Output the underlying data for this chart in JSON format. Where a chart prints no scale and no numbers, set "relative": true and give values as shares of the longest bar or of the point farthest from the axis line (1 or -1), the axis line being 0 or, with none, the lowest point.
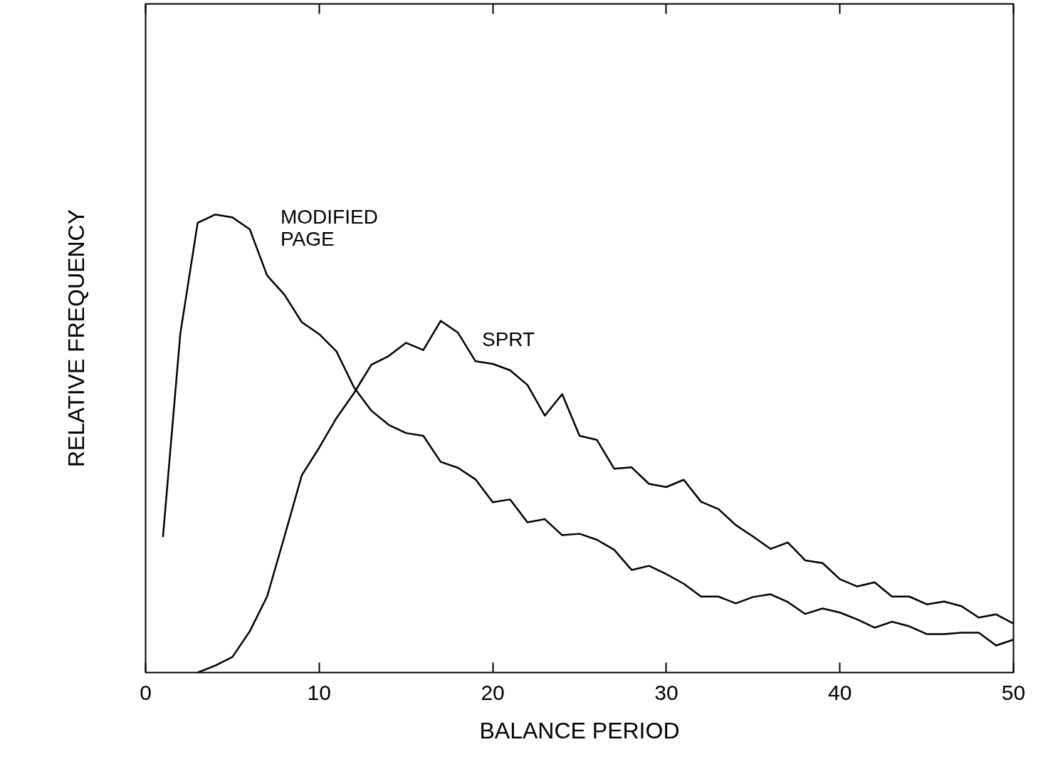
{
  "chart_data": {
    "type": "line",
    "xlabel": "BALANCE PERIOD",
    "ylabel": "RELATIVE FREQUENCY",
    "relative": true,
    "xlim": [
      0,
      50
    ],
    "xticks": [
      0,
      10,
      20,
      30,
      40,
      50
    ],
    "grid": false,
    "legend": false,
    "marker": "none",
    "line_style": "solid",
    "series": [
      {
        "name": "MODIFIED\nPAGE",
        "color": "#000000",
        "x": [
          1,
          2,
          3,
          4,
          5,
          6,
          7,
          8,
          9,
          10,
          11,
          12,
          13,
          14,
          15,
          16,
          17,
          18,
          19,
          20,
          21,
          22,
          23,
          24,
          25,
          26,
          27,
          28,
          29,
          30,
          31,
          32,
          33,
          34,
          35,
          36,
          37,
          38,
          39,
          40,
          41,
          42,
          43,
          44,
          45,
          46,
          47,
          48,
          49,
          50
        ],
        "values": [
          0.296,
          0.74,
          0.982,
          1.0,
          0.994,
          0.968,
          0.867,
          0.825,
          0.765,
          0.739,
          0.701,
          0.623,
          0.572,
          0.541,
          0.523,
          0.517,
          0.46,
          0.447,
          0.422,
          0.372,
          0.378,
          0.328,
          0.335,
          0.3,
          0.303,
          0.29,
          0.268,
          0.224,
          0.233,
          0.215,
          0.194,
          0.166,
          0.166,
          0.151,
          0.165,
          0.171,
          0.154,
          0.128,
          0.14,
          0.131,
          0.116,
          0.098,
          0.111,
          0.101,
          0.084,
          0.084,
          0.087,
          0.087,
          0.059,
          0.072
        ]
      },
      {
        "name": "SPRT",
        "color": "#000000",
        "x": [
          3,
          4,
          5,
          6,
          7,
          8,
          9,
          10,
          11,
          12,
          13,
          14,
          15,
          16,
          17,
          18,
          19,
          20,
          21,
          22,
          23,
          24,
          25,
          26,
          27,
          28,
          29,
          30,
          31,
          32,
          33,
          34,
          35,
          36,
          37,
          38,
          39,
          40,
          41,
          42,
          43,
          44,
          45,
          46,
          47,
          48,
          49,
          50
        ],
        "values": [
          0,
          0.015,
          0.034,
          0.09,
          0.166,
          0.297,
          0.431,
          0.491,
          0.556,
          0.61,
          0.672,
          0.691,
          0.72,
          0.704,
          0.768,
          0.742,
          0.68,
          0.674,
          0.66,
          0.628,
          0.561,
          0.608,
          0.517,
          0.508,
          0.445,
          0.448,
          0.412,
          0.405,
          0.421,
          0.373,
          0.357,
          0.322,
          0.297,
          0.27,
          0.284,
          0.245,
          0.239,
          0.204,
          0.188,
          0.197,
          0.166,
          0.166,
          0.149,
          0.155,
          0.145,
          0.12,
          0.127,
          0.107
        ]
      }
    ]
  }
}
